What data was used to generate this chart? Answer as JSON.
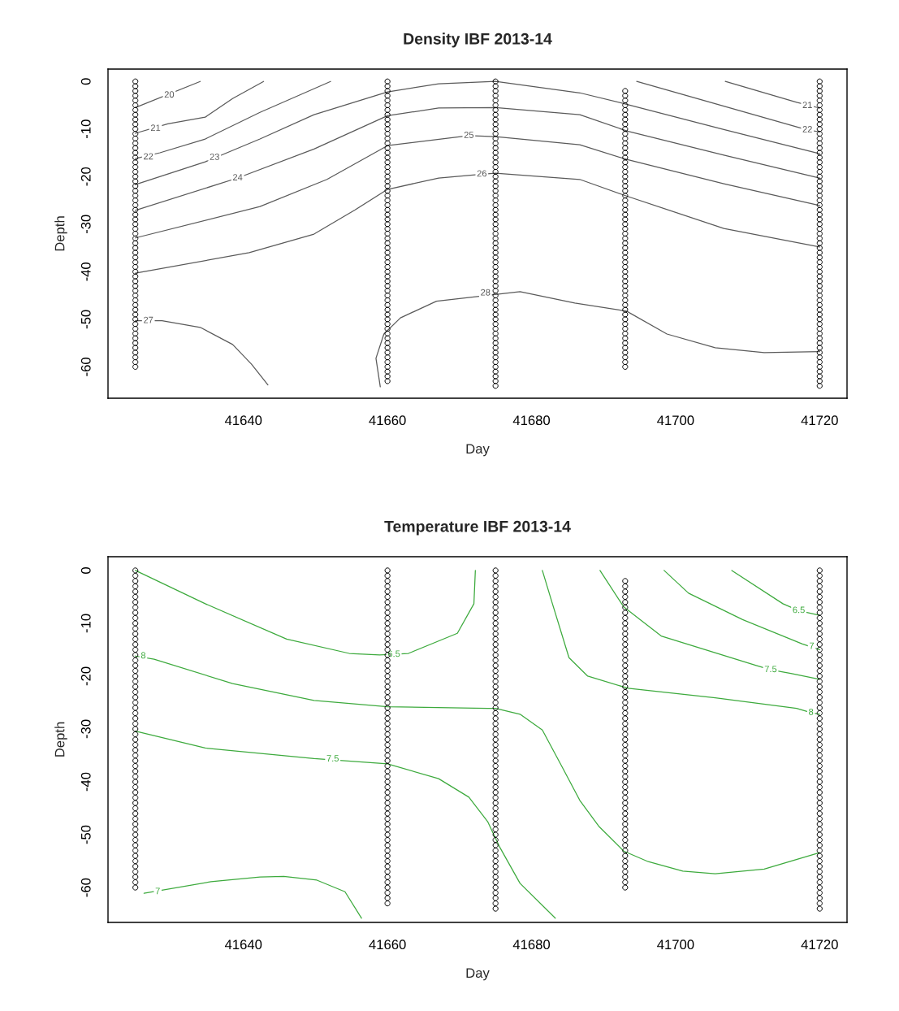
{
  "chart_data": [
    {
      "type": "line",
      "title": "Density IBF 2013-14",
      "xlabel": "Day",
      "ylabel": "Depth",
      "xlim": [
        41621.2,
        41723.8
      ],
      "ylim": [
        -66.6,
        2.6
      ],
      "xticks": [
        41640,
        41660,
        41680,
        41700,
        41720
      ],
      "yticks": [
        0,
        -10,
        -20,
        -30,
        -40,
        -50,
        -60
      ],
      "series": [
        {
          "type": "scatter",
          "marker": "circle",
          "color": "#000000",
          "x": [
            41625,
            41625,
            41625,
            41625,
            41625,
            41625,
            41625,
            41625,
            41625,
            41625,
            41625,
            41625,
            41625,
            41625,
            41625,
            41625,
            41625,
            41625,
            41625,
            41625,
            41625,
            41625,
            41625,
            41625,
            41625,
            41625,
            41625,
            41625,
            41625,
            41625,
            41625,
            41625,
            41625,
            41625,
            41625,
            41625,
            41625,
            41625,
            41625,
            41625,
            41625,
            41625,
            41625,
            41625,
            41625,
            41625,
            41625,
            41625,
            41625,
            41625,
            41625,
            41625,
            41625,
            41625,
            41625,
            41625,
            41625,
            41625,
            41625,
            41625,
            41625
          ],
          "values": [
            0,
            -1,
            -2,
            -3,
            -4,
            -5,
            -6,
            -7,
            -8,
            -9,
            -10,
            -11,
            -12,
            -13,
            -14,
            -15,
            -16,
            -17,
            -18,
            -19,
            -20,
            -21,
            -22,
            -23,
            -24,
            -25,
            -26,
            -27,
            -28,
            -29,
            -30,
            -31,
            -32,
            -33,
            -34,
            -35,
            -36,
            -37,
            -38,
            -39,
            -40,
            -41,
            -42,
            -43,
            -44,
            -45,
            -46,
            -47,
            -48,
            -49,
            -50,
            -51,
            -52,
            -53,
            -54,
            -55,
            -56,
            -57,
            -58,
            -59,
            -60
          ]
        },
        {
          "type": "scatter",
          "marker": "circle",
          "color": "#000000",
          "x": [
            41660,
            41660,
            41660,
            41660,
            41660,
            41660,
            41660,
            41660,
            41660,
            41660,
            41660,
            41660,
            41660,
            41660,
            41660,
            41660,
            41660,
            41660,
            41660,
            41660,
            41660,
            41660,
            41660,
            41660,
            41660,
            41660,
            41660,
            41660,
            41660,
            41660,
            41660,
            41660,
            41660,
            41660,
            41660,
            41660,
            41660,
            41660,
            41660,
            41660,
            41660,
            41660,
            41660,
            41660,
            41660,
            41660,
            41660,
            41660,
            41660,
            41660,
            41660,
            41660,
            41660,
            41660,
            41660,
            41660,
            41660,
            41660,
            41660,
            41660,
            41660,
            41660,
            41660,
            41660
          ],
          "values": [
            0,
            -1,
            -2,
            -3,
            -4,
            -5,
            -6,
            -7,
            -8,
            -9,
            -10,
            -11,
            -12,
            -13,
            -14,
            -15,
            -16,
            -17,
            -18,
            -19,
            -20,
            -21,
            -22,
            -23,
            -24,
            -25,
            -26,
            -27,
            -28,
            -29,
            -30,
            -31,
            -32,
            -33,
            -34,
            -35,
            -36,
            -37,
            -38,
            -39,
            -40,
            -41,
            -42,
            -43,
            -44,
            -45,
            -46,
            -47,
            -48,
            -49,
            -50,
            -51,
            -52,
            -53,
            -54,
            -55,
            -56,
            -57,
            -58,
            -59,
            -60,
            -61,
            -62,
            -63
          ]
        },
        {
          "type": "scatter",
          "marker": "circle",
          "color": "#000000",
          "x": [
            41675,
            41675,
            41675,
            41675,
            41675,
            41675,
            41675,
            41675,
            41675,
            41675,
            41675,
            41675,
            41675,
            41675,
            41675,
            41675,
            41675,
            41675,
            41675,
            41675,
            41675,
            41675,
            41675,
            41675,
            41675,
            41675,
            41675,
            41675,
            41675,
            41675,
            41675,
            41675,
            41675,
            41675,
            41675,
            41675,
            41675,
            41675,
            41675,
            41675,
            41675,
            41675,
            41675,
            41675,
            41675,
            41675,
            41675,
            41675,
            41675,
            41675,
            41675,
            41675,
            41675,
            41675,
            41675,
            41675,
            41675,
            41675,
            41675,
            41675,
            41675,
            41675,
            41675,
            41675,
            41675
          ],
          "values": [
            0,
            -1,
            -2,
            -3,
            -4,
            -5,
            -6,
            -7,
            -8,
            -9,
            -10,
            -11,
            -12,
            -13,
            -14,
            -15,
            -16,
            -17,
            -18,
            -19,
            -20,
            -21,
            -22,
            -23,
            -24,
            -25,
            -26,
            -27,
            -28,
            -29,
            -30,
            -31,
            -32,
            -33,
            -34,
            -35,
            -36,
            -37,
            -38,
            -39,
            -40,
            -41,
            -42,
            -43,
            -44,
            -45,
            -46,
            -47,
            -48,
            -49,
            -50,
            -51,
            -52,
            -53,
            -54,
            -55,
            -56,
            -57,
            -58,
            -59,
            -60,
            -61,
            -62,
            -63,
            -64
          ]
        },
        {
          "type": "scatter",
          "marker": "circle",
          "color": "#000000",
          "x": [
            41693,
            41693,
            41693,
            41693,
            41693,
            41693,
            41693,
            41693,
            41693,
            41693,
            41693,
            41693,
            41693,
            41693,
            41693,
            41693,
            41693,
            41693,
            41693,
            41693,
            41693,
            41693,
            41693,
            41693,
            41693,
            41693,
            41693,
            41693,
            41693,
            41693,
            41693,
            41693,
            41693,
            41693,
            41693,
            41693,
            41693,
            41693,
            41693,
            41693,
            41693,
            41693,
            41693,
            41693,
            41693,
            41693,
            41693,
            41693,
            41693,
            41693,
            41693,
            41693,
            41693,
            41693,
            41693,
            41693,
            41693,
            41693,
            41693
          ],
          "values": [
            -2,
            -3,
            -4,
            -5,
            -6,
            -7,
            -8,
            -9,
            -10,
            -11,
            -12,
            -13,
            -14,
            -15,
            -16,
            -17,
            -18,
            -19,
            -20,
            -21,
            -22,
            -23,
            -24,
            -25,
            -26,
            -27,
            -28,
            -29,
            -30,
            -31,
            -32,
            -33,
            -34,
            -35,
            -36,
            -37,
            -38,
            -39,
            -40,
            -41,
            -42,
            -43,
            -44,
            -45,
            -46,
            -47,
            -48,
            -49,
            -50,
            -51,
            -52,
            -53,
            -54,
            -55,
            -56,
            -57,
            -58,
            -59,
            -60
          ]
        },
        {
          "type": "scatter",
          "marker": "circle",
          "color": "#000000",
          "x": [
            41720,
            41720,
            41720,
            41720,
            41720,
            41720,
            41720,
            41720,
            41720,
            41720,
            41720,
            41720,
            41720,
            41720,
            41720,
            41720,
            41720,
            41720,
            41720,
            41720,
            41720,
            41720,
            41720,
            41720,
            41720,
            41720,
            41720,
            41720,
            41720,
            41720,
            41720,
            41720,
            41720,
            41720,
            41720,
            41720,
            41720,
            41720,
            41720,
            41720,
            41720,
            41720,
            41720,
            41720,
            41720,
            41720,
            41720,
            41720,
            41720,
            41720,
            41720,
            41720,
            41720,
            41720,
            41720,
            41720,
            41720,
            41720,
            41720,
            41720,
            41720,
            41720,
            41720,
            41720,
            41720
          ],
          "values": [
            0,
            -1,
            -2,
            -3,
            -4,
            -5,
            -6,
            -7,
            -8,
            -9,
            -10,
            -11,
            -12,
            -13,
            -14,
            -15,
            -16,
            -17,
            -18,
            -19,
            -20,
            -21,
            -22,
            -23,
            -24,
            -25,
            -26,
            -27,
            -28,
            -29,
            -30,
            -31,
            -32,
            -33,
            -34,
            -35,
            -36,
            -37,
            -38,
            -39,
            -40,
            -41,
            -42,
            -43,
            -44,
            -45,
            -46,
            -47,
            -48,
            -49,
            -50,
            -51,
            -52,
            -53,
            -54,
            -55,
            -56,
            -57,
            -58,
            -59,
            -60,
            -61,
            -62,
            -63,
            -64
          ]
        },
        {
          "type": "line",
          "color": "#5a5a5a",
          "x": [
            41625,
            41634
          ],
          "values": [
            -5.5,
            0
          ]
        },
        {
          "type": "line",
          "color": "#5a5a5a",
          "x": [
            41625,
            41629.5,
            41634.7,
            41638.5,
            41642.8
          ],
          "values": [
            -10.9,
            -8.9,
            -7.5,
            -3.6,
            0
          ]
        },
        {
          "type": "line",
          "color": "#5a5a5a",
          "x": [
            41706.9,
            41716.8,
            41720
          ],
          "values": [
            0,
            -4.4,
            -5.6
          ]
        },
        {
          "type": "line",
          "color": "#5a5a5a",
          "x": [
            41625,
            41628.4,
            41634.7,
            41642.3,
            41652.1
          ],
          "values": [
            -16.2,
            -15.0,
            -12.1,
            -6.5,
            0
          ]
        },
        {
          "type": "line",
          "color": "#5a5a5a",
          "x": [
            41694.6,
            41718.3,
            41720
          ],
          "values": [
            0,
            -10.2,
            -10.6
          ]
        },
        {
          "type": "line",
          "color": "#5a5a5a",
          "x": [
            41625,
            41634.7,
            41642.3,
            41649.8,
            41660,
            41667.1,
            41675,
            41686.7,
            41693.2,
            41706.7,
            41720
          ],
          "values": [
            -21.7,
            -16.9,
            -12.1,
            -7.0,
            -2.2,
            -0.5,
            0,
            -2.4,
            -4.8,
            -10.1,
            -15.2
          ]
        },
        {
          "type": "line",
          "color": "#5a5a5a",
          "x": [
            41625,
            41639.2,
            41649.8,
            41660,
            41667.1,
            41675,
            41686.7,
            41693.2,
            41706.7,
            41720
          ],
          "values": [
            -27.1,
            -20.3,
            -14.2,
            -7.2,
            -5.6,
            -5.5,
            -7.0,
            -10.4,
            -15.5,
            -20.3
          ]
        },
        {
          "type": "line",
          "color": "#5a5a5a",
          "x": [
            41625,
            41642.3,
            41651.6,
            41660,
            41671.3,
            41675,
            41686.7,
            41693.2,
            41706.7,
            41720
          ],
          "values": [
            -32.9,
            -26.3,
            -20.6,
            -13.5,
            -11.4,
            -11.6,
            -13.3,
            -16.4,
            -21.5,
            -26.1
          ]
        },
        {
          "type": "line",
          "color": "#5a5a5a",
          "x": [
            41625,
            41640.8,
            41649.8,
            41655.5,
            41660,
            41667.1,
            41673.1,
            41675,
            41686.7,
            41693.2,
            41706.7,
            41720
          ],
          "values": [
            -40.3,
            -36.0,
            -32.1,
            -27.0,
            -22.7,
            -20.3,
            -19.5,
            -19.3,
            -20.6,
            -24.1,
            -30.9,
            -34.8
          ]
        },
        {
          "type": "line",
          "color": "#5a5a5a",
          "x": [
            41625,
            41628.7,
            41634.0,
            41638.5,
            41641.1,
            41643.4
          ],
          "values": [
            -50.3,
            -50.3,
            -51.7,
            -55.3,
            -59.4,
            -63.8
          ]
        },
        {
          "type": "line",
          "color": "#5a5a5a",
          "x": [
            41659.0,
            41658.4,
            41659.5,
            41661.8,
            41666.8,
            41678.4,
            41686.0,
            41693.2,
            41698.8,
            41705.5,
            41712.3,
            41720
          ],
          "values": [
            -64.2,
            -58.2,
            -53.1,
            -49.7,
            -46.2,
            -44.2,
            -46.6,
            -48.3,
            -53.1,
            -56.0,
            -57.0,
            -56.8
          ]
        }
      ],
      "annotations": [
        {
          "text": "20",
          "x": 41629.7,
          "y": -2.9
        },
        {
          "text": "21",
          "x": 41627.8,
          "y": -9.9
        },
        {
          "text": "21",
          "x": 41718.3,
          "y": -5.1
        },
        {
          "text": "22",
          "x": 41626.8,
          "y": -15.9
        },
        {
          "text": "22",
          "x": 41718.3,
          "y": -10.2
        },
        {
          "text": "23",
          "x": 41636.0,
          "y": -16.0
        },
        {
          "text": "24",
          "x": 41639.2,
          "y": -20.3
        },
        {
          "text": "25",
          "x": 41671.3,
          "y": -11.4
        },
        {
          "text": "26",
          "x": 41673.1,
          "y": -19.5
        },
        {
          "text": "27",
          "x": 41626.8,
          "y": -50.3
        },
        {
          "text": "28",
          "x": 41673.6,
          "y": -44.5
        }
      ]
    },
    {
      "type": "line",
      "title": "Temperature IBF 2013-14",
      "xlabel": "Day",
      "ylabel": "Depth",
      "xlim": [
        41621.2,
        41723.8
      ],
      "ylim": [
        -66.6,
        2.6
      ],
      "xticks": [
        41640,
        41660,
        41680,
        41700,
        41720
      ],
      "yticks": [
        0,
        -10,
        -20,
        -30,
        -40,
        -50,
        -60
      ],
      "series": [
        {
          "type": "scatter",
          "marker": "circle",
          "color": "#000000",
          "x": [
            41625,
            41625,
            41625,
            41625,
            41625,
            41625,
            41625,
            41625,
            41625,
            41625,
            41625,
            41625,
            41625,
            41625,
            41625,
            41625,
            41625,
            41625,
            41625,
            41625,
            41625,
            41625,
            41625,
            41625,
            41625,
            41625,
            41625,
            41625,
            41625,
            41625,
            41625,
            41625,
            41625,
            41625,
            41625,
            41625,
            41625,
            41625,
            41625,
            41625,
            41625,
            41625,
            41625,
            41625,
            41625,
            41625,
            41625,
            41625,
            41625,
            41625,
            41625,
            41625,
            41625,
            41625,
            41625,
            41625,
            41625,
            41625,
            41625,
            41625,
            41625
          ],
          "values": [
            0,
            -1,
            -2,
            -3,
            -4,
            -5,
            -6,
            -7,
            -8,
            -9,
            -10,
            -11,
            -12,
            -13,
            -14,
            -15,
            -16,
            -17,
            -18,
            -19,
            -20,
            -21,
            -22,
            -23,
            -24,
            -25,
            -26,
            -27,
            -28,
            -29,
            -30,
            -31,
            -32,
            -33,
            -34,
            -35,
            -36,
            -37,
            -38,
            -39,
            -40,
            -41,
            -42,
            -43,
            -44,
            -45,
            -46,
            -47,
            -48,
            -49,
            -50,
            -51,
            -52,
            -53,
            -54,
            -55,
            -56,
            -57,
            -58,
            -59,
            -60
          ]
        },
        {
          "type": "scatter",
          "marker": "circle",
          "color": "#000000",
          "x": [
            41660,
            41660,
            41660,
            41660,
            41660,
            41660,
            41660,
            41660,
            41660,
            41660,
            41660,
            41660,
            41660,
            41660,
            41660,
            41660,
            41660,
            41660,
            41660,
            41660,
            41660,
            41660,
            41660,
            41660,
            41660,
            41660,
            41660,
            41660,
            41660,
            41660,
            41660,
            41660,
            41660,
            41660,
            41660,
            41660,
            41660,
            41660,
            41660,
            41660,
            41660,
            41660,
            41660,
            41660,
            41660,
            41660,
            41660,
            41660,
            41660,
            41660,
            41660,
            41660,
            41660,
            41660,
            41660,
            41660,
            41660,
            41660,
            41660,
            41660,
            41660,
            41660,
            41660,
            41660
          ],
          "values": [
            0,
            -1,
            -2,
            -3,
            -4,
            -5,
            -6,
            -7,
            -8,
            -9,
            -10,
            -11,
            -12,
            -13,
            -14,
            -15,
            -16,
            -17,
            -18,
            -19,
            -20,
            -21,
            -22,
            -23,
            -24,
            -25,
            -26,
            -27,
            -28,
            -29,
            -30,
            -31,
            -32,
            -33,
            -34,
            -35,
            -36,
            -37,
            -38,
            -39,
            -40,
            -41,
            -42,
            -43,
            -44,
            -45,
            -46,
            -47,
            -48,
            -49,
            -50,
            -51,
            -52,
            -53,
            -54,
            -55,
            -56,
            -57,
            -58,
            -59,
            -60,
            -61,
            -62,
            -63
          ]
        },
        {
          "type": "scatter",
          "marker": "circle",
          "color": "#000000",
          "x": [
            41675,
            41675,
            41675,
            41675,
            41675,
            41675,
            41675,
            41675,
            41675,
            41675,
            41675,
            41675,
            41675,
            41675,
            41675,
            41675,
            41675,
            41675,
            41675,
            41675,
            41675,
            41675,
            41675,
            41675,
            41675,
            41675,
            41675,
            41675,
            41675,
            41675,
            41675,
            41675,
            41675,
            41675,
            41675,
            41675,
            41675,
            41675,
            41675,
            41675,
            41675,
            41675,
            41675,
            41675,
            41675,
            41675,
            41675,
            41675,
            41675,
            41675,
            41675,
            41675,
            41675,
            41675,
            41675,
            41675,
            41675,
            41675,
            41675,
            41675,
            41675,
            41675,
            41675,
            41675,
            41675
          ],
          "values": [
            0,
            -1,
            -2,
            -3,
            -4,
            -5,
            -6,
            -7,
            -8,
            -9,
            -10,
            -11,
            -12,
            -13,
            -14,
            -15,
            -16,
            -17,
            -18,
            -19,
            -20,
            -21,
            -22,
            -23,
            -24,
            -25,
            -26,
            -27,
            -28,
            -29,
            -30,
            -31,
            -32,
            -33,
            -34,
            -35,
            -36,
            -37,
            -38,
            -39,
            -40,
            -41,
            -42,
            -43,
            -44,
            -45,
            -46,
            -47,
            -48,
            -49,
            -50,
            -51,
            -52,
            -53,
            -54,
            -55,
            -56,
            -57,
            -58,
            -59,
            -60,
            -61,
            -62,
            -63,
            -64
          ]
        },
        {
          "type": "scatter",
          "marker": "circle",
          "color": "#000000",
          "x": [
            41693,
            41693,
            41693,
            41693,
            41693,
            41693,
            41693,
            41693,
            41693,
            41693,
            41693,
            41693,
            41693,
            41693,
            41693,
            41693,
            41693,
            41693,
            41693,
            41693,
            41693,
            41693,
            41693,
            41693,
            41693,
            41693,
            41693,
            41693,
            41693,
            41693,
            41693,
            41693,
            41693,
            41693,
            41693,
            41693,
            41693,
            41693,
            41693,
            41693,
            41693,
            41693,
            41693,
            41693,
            41693,
            41693,
            41693,
            41693,
            41693,
            41693,
            41693,
            41693,
            41693,
            41693,
            41693,
            41693,
            41693,
            41693,
            41693
          ],
          "values": [
            -2,
            -3,
            -4,
            -5,
            -6,
            -7,
            -8,
            -9,
            -10,
            -11,
            -12,
            -13,
            -14,
            -15,
            -16,
            -17,
            -18,
            -19,
            -20,
            -21,
            -22,
            -23,
            -24,
            -25,
            -26,
            -27,
            -28,
            -29,
            -30,
            -31,
            -32,
            -33,
            -34,
            -35,
            -36,
            -37,
            -38,
            -39,
            -40,
            -41,
            -42,
            -43,
            -44,
            -45,
            -46,
            -47,
            -48,
            -49,
            -50,
            -51,
            -52,
            -53,
            -54,
            -55,
            -56,
            -57,
            -58,
            -59,
            -60
          ]
        },
        {
          "type": "scatter",
          "marker": "circle",
          "color": "#000000",
          "x": [
            41720,
            41720,
            41720,
            41720,
            41720,
            41720,
            41720,
            41720,
            41720,
            41720,
            41720,
            41720,
            41720,
            41720,
            41720,
            41720,
            41720,
            41720,
            41720,
            41720,
            41720,
            41720,
            41720,
            41720,
            41720,
            41720,
            41720,
            41720,
            41720,
            41720,
            41720,
            41720,
            41720,
            41720,
            41720,
            41720,
            41720,
            41720,
            41720,
            41720,
            41720,
            41720,
            41720,
            41720,
            41720,
            41720,
            41720,
            41720,
            41720,
            41720,
            41720,
            41720,
            41720,
            41720,
            41720,
            41720,
            41720,
            41720,
            41720,
            41720,
            41720,
            41720,
            41720,
            41720,
            41720
          ],
          "values": [
            0,
            -1,
            -2,
            -3,
            -4,
            -5,
            -6,
            -7,
            -8,
            -9,
            -10,
            -11,
            -12,
            -13,
            -14,
            -15,
            -16,
            -17,
            -18,
            -19,
            -20,
            -21,
            -22,
            -23,
            -24,
            -25,
            -26,
            -27,
            -28,
            -29,
            -30,
            -31,
            -32,
            -33,
            -34,
            -35,
            -36,
            -37,
            -38,
            -39,
            -40,
            -41,
            -42,
            -43,
            -44,
            -45,
            -46,
            -47,
            -48,
            -49,
            -50,
            -51,
            -52,
            -53,
            -54,
            -55,
            -56,
            -57,
            -58,
            -59,
            -60,
            -61,
            -62,
            -63,
            -64
          ]
        },
        {
          "type": "line",
          "color": "#3daa3d",
          "x": [
            41625,
            41634.7,
            41646.0,
            41654.7,
            41658.9,
            41662.9,
            41669.7,
            41672.0,
            41672.2
          ],
          "values": [
            0,
            -6.3,
            -13.0,
            -15.7,
            -16.0,
            -15.7,
            -11.9,
            -6.3,
            0
          ]
        },
        {
          "type": "line",
          "color": "#3daa3d",
          "x": [
            41625,
            41627.6,
            41638.5,
            41649.8,
            41660,
            41673.9,
            41675,
            41678.4,
            41681.5,
            41684.1,
            41686.7,
            41689.4,
            41692.8,
            41696.2,
            41701.0,
            41705.5,
            41712.3,
            41720
          ],
          "values": [
            -16.2,
            -16.8,
            -21.4,
            -24.6,
            -25.8,
            -26.1,
            -26.1,
            -27.2,
            -30.2,
            -36.8,
            -43.5,
            -48.5,
            -53.1,
            -55.1,
            -56.9,
            -57.4,
            -56.5,
            -53.4
          ]
        },
        {
          "type": "line",
          "color": "#3daa3d",
          "x": [
            41625,
            41634.7,
            41649.8,
            41660,
            41667.1,
            41671.3,
            41673.9,
            41675.6,
            41678.4,
            41683.3
          ],
          "values": [
            -30.4,
            -33.6,
            -35.6,
            -36.6,
            -39.4,
            -42.9,
            -47.5,
            -52.4,
            -59.2,
            -65.8
          ]
        },
        {
          "type": "line",
          "color": "#3daa3d",
          "x": [
            41626.2,
            41635.5,
            41642.3,
            41645.6,
            41650.2,
            41654.1,
            41656.4
          ],
          "values": [
            -61.1,
            -58.9,
            -58.0,
            -57.9,
            -58.6,
            -60.8,
            -65.8
          ]
        },
        {
          "type": "line",
          "color": "#3daa3d",
          "x": [
            41681.5,
            41682.9,
            41685.2,
            41687.8,
            41693.4,
            41705.5,
            41716.8,
            41718.8,
            41720
          ],
          "values": [
            0,
            -6.3,
            -16.5,
            -20.0,
            -22.3,
            -24.1,
            -26.1,
            -26.9,
            -27.2
          ]
        },
        {
          "type": "line",
          "color": "#3daa3d",
          "x": [
            41689.5,
            41692.8,
            41698.0,
            41711.2,
            41713.2,
            41716.0,
            41720
          ],
          "values": [
            0,
            -6.9,
            -12.4,
            -18.0,
            -18.8,
            -19.5,
            -20.6
          ]
        },
        {
          "type": "line",
          "color": "#3daa3d",
          "x": [
            41698.4,
            41701.8,
            41709.3,
            41717.6,
            41720
          ],
          "values": [
            0,
            -4.3,
            -9.3,
            -13.9,
            -15.0
          ]
        },
        {
          "type": "line",
          "color": "#3daa3d",
          "x": [
            41707.8,
            41714.9,
            41717.1,
            41720
          ],
          "values": [
            0,
            -6.3,
            -7.6,
            -8.5
          ]
        }
      ],
      "annotations": [
        {
          "text": "6.5",
          "x": 41660.9,
          "y": -15.9
        },
        {
          "text": "8",
          "x": 41626.1,
          "y": -16.2
        },
        {
          "text": "7.5",
          "x": 41652.4,
          "y": -35.7
        },
        {
          "text": "7",
          "x": 41628.1,
          "y": -60.8
        },
        {
          "text": "8",
          "x": 41718.8,
          "y": -26.9
        },
        {
          "text": "7.5",
          "x": 41713.2,
          "y": -18.8
        },
        {
          "text": "7",
          "x": 41718.9,
          "y": -14.4
        },
        {
          "text": "6.5",
          "x": 41717.1,
          "y": -7.6
        }
      ]
    }
  ]
}
